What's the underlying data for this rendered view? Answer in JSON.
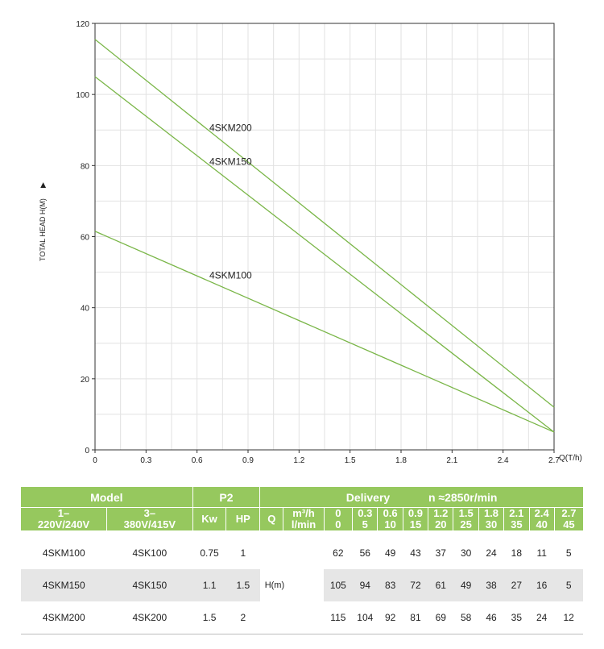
{
  "chart_data": {
    "type": "line",
    "ylabel": "TOTAL HEAD H(M)",
    "xlabel": "Q(T/h)",
    "xlim": [
      0,
      2.7
    ],
    "ylim": [
      0,
      120
    ],
    "x_ticks": [
      "0",
      "0.3",
      "0.6",
      "0.9",
      "1.2",
      "1.5",
      "1.8",
      "2.1",
      "2.4",
      "2.7"
    ],
    "y_ticks": [
      "0",
      "20",
      "40",
      "60",
      "80",
      "100",
      "120"
    ],
    "x": [
      0,
      2.7
    ],
    "series": [
      {
        "name": "4SKM200",
        "values": [
          115.5,
          12
        ]
      },
      {
        "name": "4SKM150",
        "values": [
          105,
          5
        ]
      },
      {
        "name": "4SKM100",
        "values": [
          61.5,
          5
        ]
      }
    ],
    "grid": true,
    "line_color": "#7ab648"
  },
  "table": {
    "model_label": "Model",
    "p2_label": "P2",
    "delivery_label": "Delivery",
    "speed_label": "n ≈2850r/min",
    "phase1_a": "1–",
    "phase1_b": "220V/240V",
    "phase3_a": "3–",
    "phase3_b": "380V/415V",
    "kw_label": "Kw",
    "hp_label": "HP",
    "q_label": "Q",
    "unit_m3h": "m³/h",
    "unit_lmin": "l/min",
    "m3h": [
      "0",
      "0.3",
      "0.6",
      "0.9",
      "1.2",
      "1.5",
      "1.8",
      "2.1",
      "2.4",
      "2.7"
    ],
    "lmin": [
      "0",
      "5",
      "10",
      "15",
      "20",
      "25",
      "30",
      "35",
      "40",
      "45"
    ],
    "h_label": "H(m)",
    "rows": [
      {
        "m1": "4SKM100",
        "m3": "4SK100",
        "kw": "0.75",
        "hp": "1",
        "h": [
          "62",
          "56",
          "49",
          "43",
          "37",
          "30",
          "24",
          "18",
          "11",
          "5"
        ]
      },
      {
        "m1": "4SKM150",
        "m3": "4SK150",
        "kw": "1.1",
        "hp": "1.5",
        "h": [
          "105",
          "94",
          "83",
          "72",
          "61",
          "49",
          "38",
          "27",
          "16",
          "5"
        ]
      },
      {
        "m1": "4SKM200",
        "m3": "4SK200",
        "kw": "1.5",
        "hp": "2",
        "h": [
          "115",
          "104",
          "92",
          "81",
          "69",
          "58",
          "46",
          "35",
          "24",
          "12"
        ]
      }
    ]
  }
}
